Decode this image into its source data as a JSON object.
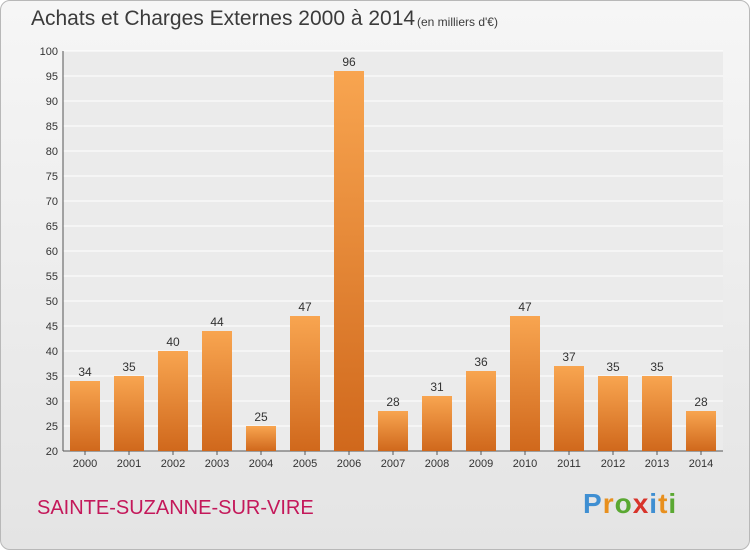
{
  "header": {
    "title": "Achats et Charges Externes 2000 à 2014",
    "subtitle": "(en milliers d'€)"
  },
  "footer": {
    "commune": "SAINTE-SUZANNE-SUR-VIRE",
    "brand": {
      "letters": [
        "P",
        "r",
        "o",
        "x",
        "i",
        "t",
        "i"
      ],
      "colors": [
        "#3f8fd2",
        "#e8901e",
        "#5aa832",
        "#d8342b",
        "#3f8fd2",
        "#e8901e",
        "#5aa832"
      ]
    }
  },
  "chart_data": {
    "type": "bar",
    "title": "Achats et Charges Externes 2000 à 2014",
    "subtitle": "(en milliers d'€)",
    "categories": [
      "2000",
      "2001",
      "2002",
      "2003",
      "2004",
      "2005",
      "2006",
      "2007",
      "2008",
      "2009",
      "2010",
      "2011",
      "2012",
      "2013",
      "2014"
    ],
    "values": [
      34,
      35,
      40,
      44,
      25,
      47,
      96,
      28,
      31,
      36,
      47,
      37,
      35,
      35,
      28
    ],
    "ylim": [
      20,
      100
    ],
    "yticks": [
      20,
      25,
      30,
      35,
      40,
      45,
      50,
      55,
      60,
      65,
      70,
      75,
      80,
      85,
      90,
      95,
      100
    ],
    "grid": true,
    "bar_color_top": "#f8a550",
    "bar_color_bottom": "#d0681c"
  }
}
